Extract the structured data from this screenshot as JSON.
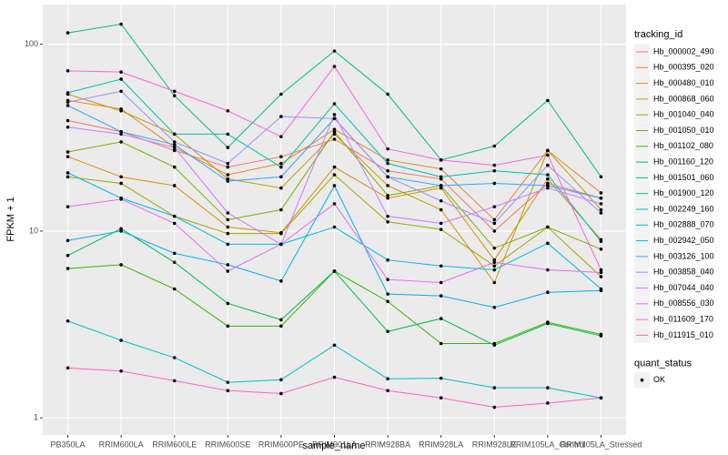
{
  "chart_data": {
    "type": "line",
    "x_label": "sample_name",
    "y_label": "FPKM + 1",
    "log_y": true,
    "grid": true,
    "legend_title": "tracking_id",
    "legend_position": "right",
    "shape_legend": {
      "title": "quant_status",
      "labels": [
        "OK"
      ],
      "color": "#000000"
    },
    "categories": [
      "PB350LA",
      "RRIM600LA",
      "RRIM600LE",
      "RRIM600SE",
      "RRIM600PE",
      "RRIM901LA",
      "RRIM928BA",
      "RRIM928LA",
      "RRIM928LE",
      "RRIM105LA_Control",
      "RRIM105LA_Stressed"
    ],
    "ylim": [
      0.81,
      163
    ],
    "yticks": [
      1,
      10,
      100
    ],
    "series": [
      {
        "name": "Hb_000002_490",
        "color": "#F8766D",
        "values": [
          39,
          34,
          27,
          22,
          25,
          31,
          21,
          19,
          10,
          18,
          15
        ]
      },
      {
        "name": "Hb_000395_020",
        "color": "#EA8331",
        "values": [
          50,
          45,
          28,
          20,
          23,
          35,
          24,
          21.5,
          11.5,
          27,
          16
        ]
      },
      {
        "name": "Hb_000480_010",
        "color": "#D89000",
        "values": [
          25,
          19.5,
          17.5,
          10.5,
          9.8,
          22,
          15,
          17,
          7,
          19,
          9
        ]
      },
      {
        "name": "Hb_000868_060",
        "color": "#C09B00",
        "values": [
          54,
          44,
          33,
          19,
          17,
          33,
          17.5,
          13,
          5.3,
          27,
          13
        ]
      },
      {
        "name": "Hb_001040_040",
        "color": "#A3A500",
        "values": [
          19.5,
          18,
          12,
          9.7,
          9.7,
          20,
          11.2,
          10.2,
          6.5,
          10.5,
          5.7
        ]
      },
      {
        "name": "Hb_001050_010",
        "color": "#7CAE00",
        "values": [
          26.5,
          30,
          22,
          11.5,
          13,
          34,
          15.5,
          17.5,
          8.1,
          10.5,
          8
        ]
      },
      {
        "name": "Hb_001102_080",
        "color": "#39B600",
        "values": [
          6.3,
          6.6,
          4.9,
          3.1,
          3.1,
          6.1,
          4.2,
          2.5,
          2.5,
          3.25,
          2.8
        ]
      },
      {
        "name": "Hb_001160_120",
        "color": "#00BB4E",
        "values": [
          7.4,
          10.3,
          6.8,
          4.1,
          3.35,
          6.1,
          2.9,
          3.4,
          2.45,
          3.2,
          2.75
        ]
      },
      {
        "name": "Hb_001501_060",
        "color": "#00BF7D",
        "values": [
          115,
          128,
          53,
          28,
          54,
          92,
          54,
          24,
          28.5,
          50,
          19.5
        ]
      },
      {
        "name": "Hb_001900_120",
        "color": "#00C1A3",
        "values": [
          55,
          65,
          33,
          33,
          22,
          48,
          23,
          19.5,
          21,
          20,
          8.8
        ]
      },
      {
        "name": "Hb_002249_160",
        "color": "#00BFC4",
        "values": [
          3.3,
          2.6,
          2.1,
          1.55,
          1.6,
          2.45,
          1.62,
          1.63,
          1.45,
          1.45,
          1.28
        ]
      },
      {
        "name": "Hb_002888_070",
        "color": "#00BAE0",
        "values": [
          20.5,
          15,
          12,
          8.5,
          8.5,
          10.5,
          7,
          6.5,
          6.2,
          8.6,
          4.9
        ]
      },
      {
        "name": "Hb_002942_050",
        "color": "#00B0F6",
        "values": [
          8.9,
          10,
          7.6,
          6.6,
          5.4,
          17.5,
          4.6,
          4.5,
          3.9,
          4.7,
          4.8
        ]
      },
      {
        "name": "Hb_003126_100",
        "color": "#35A2FF",
        "values": [
          47,
          34,
          29,
          18.5,
          19.5,
          40,
          19.5,
          17.5,
          18,
          17.5,
          15
        ]
      },
      {
        "name": "Hb_003858_040",
        "color": "#9590FF",
        "values": [
          49,
          56,
          30,
          23,
          41,
          40,
          19.5,
          14.5,
          11,
          22.5,
          12.5
        ]
      },
      {
        "name": "Hb_007044_040",
        "color": "#C77CFF",
        "values": [
          36,
          33,
          28,
          12.5,
          8.5,
          42,
          12,
          11,
          13.5,
          17,
          14
        ]
      },
      {
        "name": "Hb_008556_030",
        "color": "#E76BF3",
        "values": [
          13.5,
          14.8,
          11,
          6.1,
          8.5,
          14,
          5.5,
          5.3,
          6.8,
          6.2,
          6
        ]
      },
      {
        "name": "Hb_011609_170",
        "color": "#FA62DB",
        "values": [
          72,
          71,
          56,
          44,
          32,
          76,
          27.5,
          24,
          22.5,
          25.5,
          6.2
        ]
      },
      {
        "name": "Hb_011915_010",
        "color": "#FF62BC",
        "values": [
          1.85,
          1.78,
          1.58,
          1.4,
          1.35,
          1.65,
          1.4,
          1.28,
          1.14,
          1.2,
          1.28
        ]
      }
    ]
  }
}
